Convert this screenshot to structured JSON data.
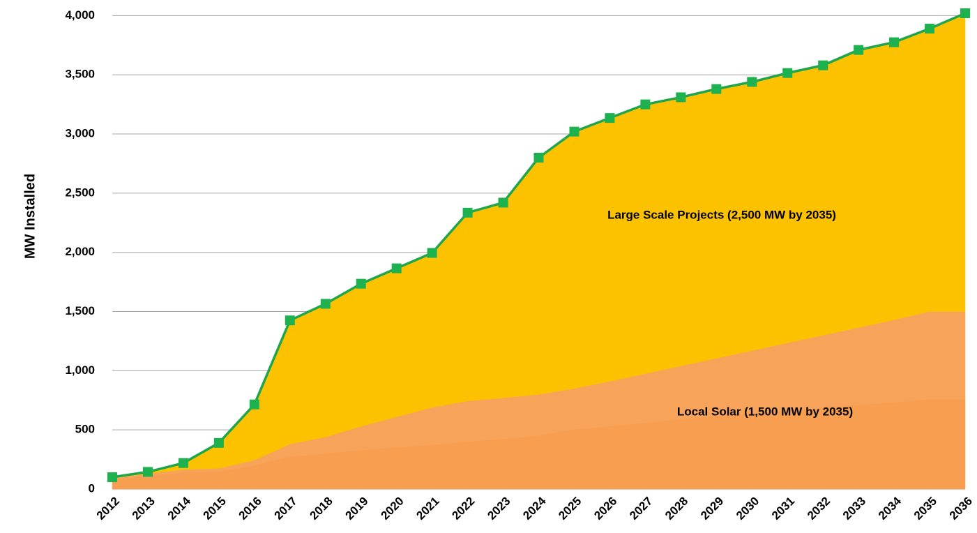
{
  "chart_data": {
    "type": "stacked_area_line",
    "y_label": "MW Installed",
    "annotations": [
      "Large Scale Projects (2,500 MW by 2035)",
      "Local Solar (1,500 MW by 2035)"
    ],
    "categories": [
      "2012",
      "2013",
      "2014",
      "2015",
      "2016",
      "2017",
      "2018",
      "2019",
      "2020",
      "2021",
      "2022",
      "2023",
      "2024",
      "2025",
      "2026",
      "2027",
      "2028",
      "2029",
      "2030",
      "2031",
      "2032",
      "2033",
      "2034",
      "2035",
      "2036"
    ],
    "series": [
      {
        "color": "#f79e50",
        "values": [
          80,
          110,
          140,
          150,
          200,
          275,
          300,
          330,
          350,
          375,
          400,
          425,
          450,
          505,
          530,
          560,
          590,
          620,
          640,
          660,
          690,
          710,
          730,
          760,
          760
        ]
      },
      {
        "color": "#f8a35a",
        "values": [
          10,
          20,
          25,
          25,
          45,
          105,
          140,
          200,
          260,
          315,
          345,
          345,
          350,
          345,
          380,
          415,
          450,
          485,
          530,
          575,
          610,
          655,
          700,
          740,
          740
        ]
      },
      {
        "color": "#fcc200",
        "values": [
          10,
          15,
          55,
          215,
          470,
          1045,
          1125,
          1205,
          1255,
          1305,
          1590,
          1650,
          2000,
          2170,
          2225,
          2275,
          2270,
          2275,
          2270,
          2280,
          2280,
          2345,
          2345,
          2390,
          2520
        ]
      },
      {
        "type": "line",
        "color": "#1fa54c",
        "values": [
          100,
          145,
          220,
          390,
          715,
          1425,
          1565,
          1735,
          1865,
          1995,
          2335,
          2420,
          2800,
          3020,
          3135,
          3250,
          3310,
          3380,
          3440,
          3515,
          3580,
          3710,
          3775,
          3890,
          4020
        ]
      }
    ],
    "ylim": [
      0,
      4020
    ],
    "yticks": [
      0,
      {
        "value": 500,
        "label": "500"
      },
      {
        "value": 1000,
        "label": "1,000"
      },
      {
        "value": 1500,
        "label": "1,500"
      },
      {
        "value": 2000,
        "label": "2,000"
      },
      {
        "value": 2500,
        "label": "2,500"
      },
      {
        "value": 3000,
        "label": "3,000"
      },
      {
        "value": 3500,
        "label": "3,500"
      },
      {
        "value": 4000,
        "label": "4,000"
      }
    ],
    "grid": true
  }
}
